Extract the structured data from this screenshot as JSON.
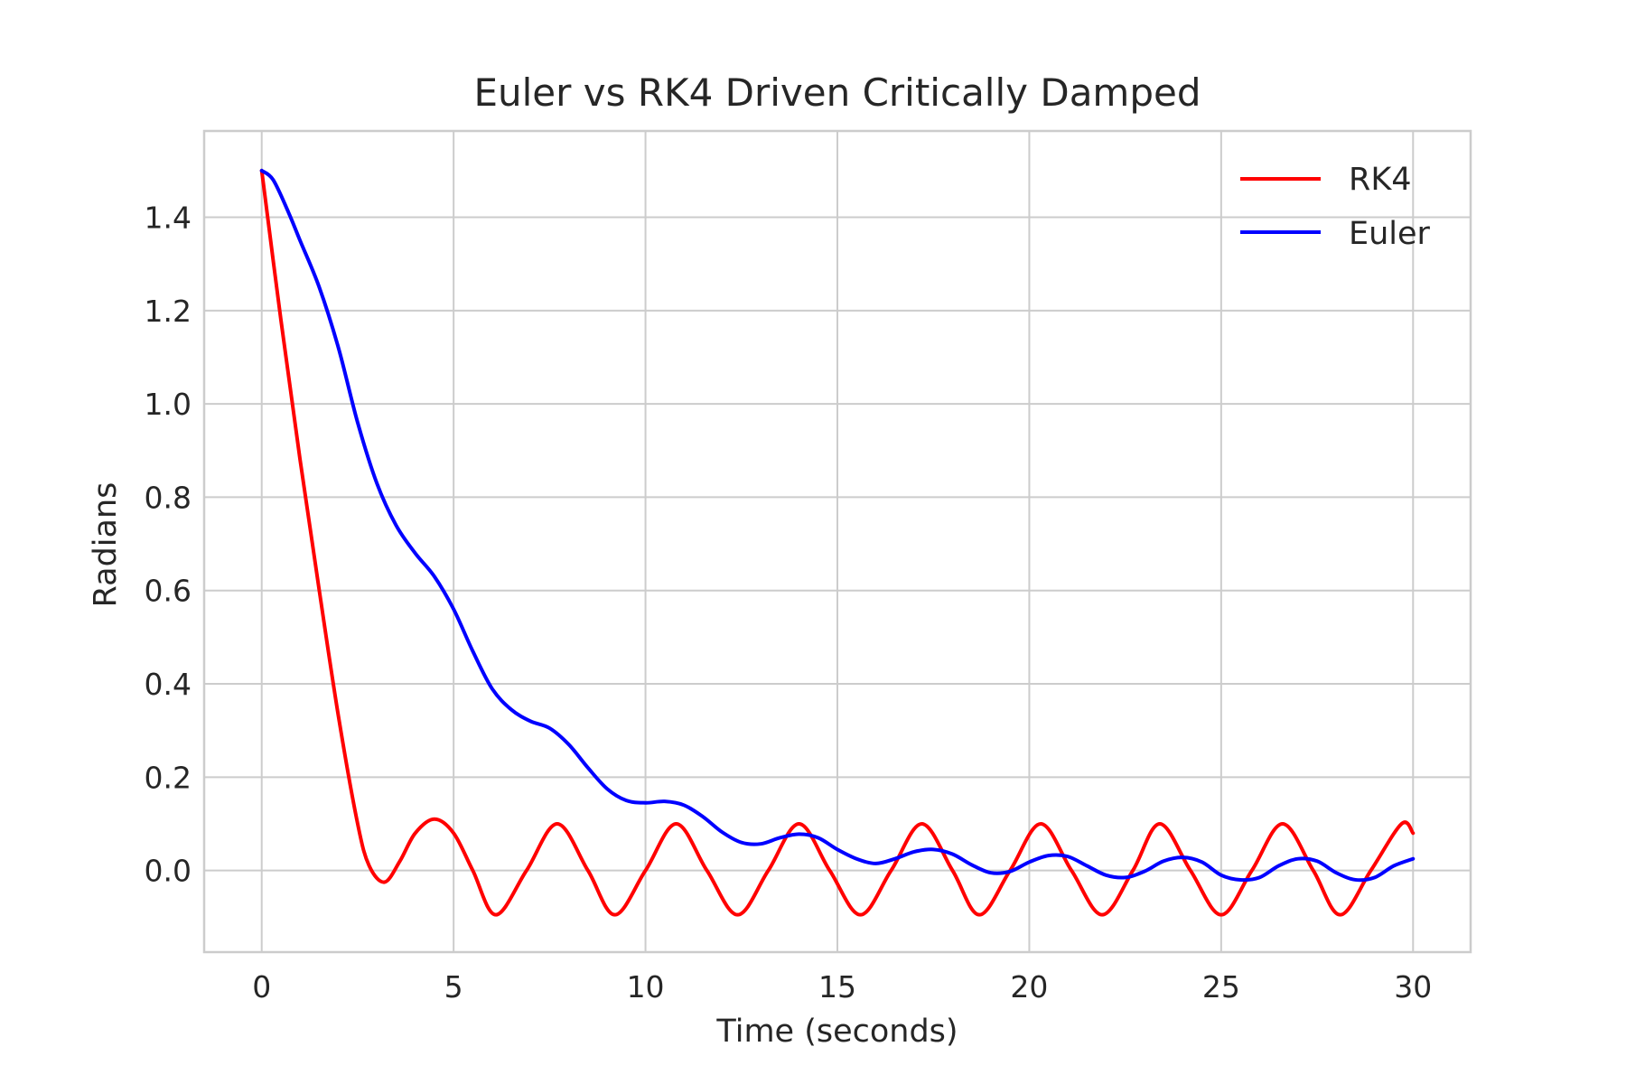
{
  "chart_data": {
    "type": "line",
    "title": "Euler vs RK4 Driven Critically Damped",
    "xlabel": "Time (seconds)",
    "ylabel": "Radians",
    "xlim": [
      -1.5,
      31.5
    ],
    "ylim": [
      -0.175,
      1.585
    ],
    "x_ticks": [
      0,
      5,
      10,
      15,
      20,
      25,
      30
    ],
    "x_tick_labels": [
      "0",
      "5",
      "10",
      "15",
      "20",
      "25",
      "30"
    ],
    "y_ticks": [
      0.0,
      0.2,
      0.4,
      0.6,
      0.8,
      1.0,
      1.2,
      1.4
    ],
    "y_tick_labels": [
      "0.0",
      "0.2",
      "0.4",
      "0.6",
      "0.8",
      "1.0",
      "1.2",
      "1.4"
    ],
    "grid": true,
    "legend_position": "top-right",
    "series": [
      {
        "name": "RK4",
        "color": "#ff0000",
        "x": [
          0,
          0.5,
          1.0,
          1.5,
          2.0,
          2.5,
          2.8,
          3.2,
          3.6,
          4.0,
          4.5,
          5.0,
          5.5,
          6.1,
          6.9,
          7.7,
          8.5,
          9.2,
          10.0,
          10.8,
          11.6,
          12.4,
          13.2,
          14.0,
          14.8,
          15.6,
          16.4,
          17.2,
          18.0,
          18.7,
          19.5,
          20.3,
          21.1,
          21.9,
          22.7,
          23.4,
          24.2,
          25.0,
          25.8,
          26.6,
          27.4,
          28.1,
          28.9,
          29.7,
          30.0
        ],
        "y": [
          1.5,
          1.18,
          0.88,
          0.6,
          0.33,
          0.1,
          0.01,
          -0.025,
          0.02,
          0.08,
          0.11,
          0.08,
          0.0,
          -0.095,
          0.0,
          0.1,
          0.0,
          -0.095,
          0.0,
          0.1,
          0.0,
          -0.095,
          0.0,
          0.1,
          0.0,
          -0.095,
          0.0,
          0.1,
          0.0,
          -0.095,
          0.0,
          0.1,
          0.0,
          -0.095,
          0.0,
          0.1,
          0.0,
          -0.095,
          0.0,
          0.1,
          0.0,
          -0.095,
          0.0,
          0.1,
          0.08
        ]
      },
      {
        "name": "Euler",
        "color": "#0000ff",
        "x": [
          0,
          0.3,
          0.7,
          1.0,
          1.5,
          2.0,
          2.5,
          3.0,
          3.5,
          4.0,
          4.5,
          5.0,
          5.5,
          6.0,
          6.5,
          7.0,
          7.5,
          8.0,
          8.5,
          9.0,
          9.5,
          10.0,
          10.5,
          11.0,
          11.5,
          12.0,
          12.5,
          13.0,
          13.5,
          14.0,
          14.5,
          15.0,
          15.5,
          16.0,
          16.5,
          17.0,
          17.5,
          18.0,
          18.5,
          19.0,
          19.5,
          20.0,
          20.5,
          21.0,
          21.5,
          22.0,
          22.5,
          23.0,
          23.5,
          24.0,
          24.5,
          25.0,
          25.5,
          26.0,
          26.5,
          27.0,
          27.5,
          28.0,
          28.5,
          29.0,
          29.5,
          30.0
        ],
        "y": [
          1.5,
          1.48,
          1.41,
          1.35,
          1.25,
          1.12,
          0.96,
          0.83,
          0.74,
          0.68,
          0.63,
          0.56,
          0.47,
          0.39,
          0.345,
          0.32,
          0.305,
          0.27,
          0.22,
          0.175,
          0.15,
          0.145,
          0.148,
          0.14,
          0.115,
          0.082,
          0.06,
          0.057,
          0.07,
          0.078,
          0.07,
          0.045,
          0.025,
          0.015,
          0.025,
          0.04,
          0.045,
          0.035,
          0.012,
          -0.005,
          -0.002,
          0.018,
          0.032,
          0.03,
          0.01,
          -0.01,
          -0.015,
          -0.002,
          0.02,
          0.028,
          0.018,
          -0.01,
          -0.02,
          -0.015,
          0.01,
          0.025,
          0.02,
          -0.005,
          -0.02,
          -0.015,
          0.01,
          0.025
        ]
      }
    ]
  }
}
